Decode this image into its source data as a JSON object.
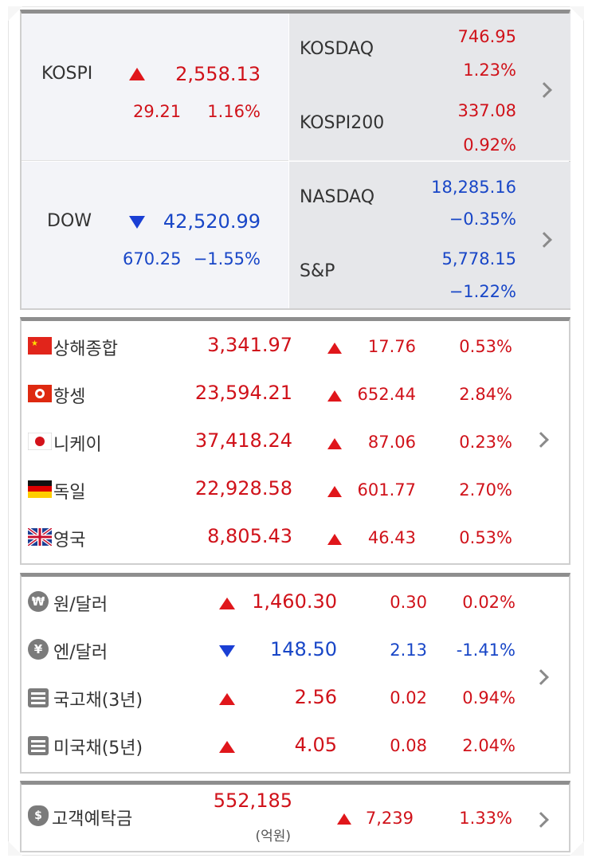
{
  "top": {
    "kospi": {
      "name": "KOSPI",
      "value": "2,558.13",
      "change": "29.21",
      "pct": "1.16%"
    },
    "kosdaq": {
      "name": "KOSDAQ",
      "value": "746.95",
      "pct": "1.23%"
    },
    "kospi200": {
      "name": "KOSPI200",
      "value": "337.08",
      "pct": "0.92%"
    },
    "dow": {
      "name": "DOW",
      "value": "42,520.99",
      "change": "670.25",
      "pct": "−1.55%"
    },
    "nasdaq": {
      "name": "NASDAQ",
      "value": "18,285.16",
      "pct": "−0.35%"
    },
    "sp": {
      "name": "S&P",
      "value": "5,778.15",
      "pct": "−1.22%"
    }
  },
  "world": [
    {
      "name": "상해종합",
      "value": "3,341.97",
      "change": "17.76",
      "pct": "0.53%",
      "flag": "china-flag-icon"
    },
    {
      "name": "항셍",
      "value": "23,594.21",
      "change": "652.44",
      "pct": "2.84%",
      "flag": "hongkong-flag-icon"
    },
    {
      "name": "니케이",
      "value": "37,418.24",
      "change": "87.06",
      "pct": "0.23%",
      "flag": "japan-flag-icon"
    },
    {
      "name": "독일",
      "value": "22,928.58",
      "change": "601.77",
      "pct": "2.70%",
      "flag": "germany-flag-icon"
    },
    {
      "name": "영국",
      "value": "8,805.43",
      "change": "46.43",
      "pct": "0.53%",
      "flag": "uk-flag-icon"
    }
  ],
  "fx": [
    {
      "name": "원/달러",
      "value": "1,460.30",
      "change": "0.30",
      "pct": "0.02%",
      "dir": "up",
      "icon": "won-icon",
      "glyph": "₩"
    },
    {
      "name": "엔/달러",
      "value": "148.50",
      "change": "2.13",
      "pct": "-1.41%",
      "dir": "down",
      "icon": "yen-icon",
      "glyph": "¥"
    },
    {
      "name": "국고채(3년)",
      "value": "2.56",
      "change": "0.02",
      "pct": "0.94%",
      "dir": "up",
      "icon": "list-icon"
    },
    {
      "name": "미국채(5년)",
      "value": "4.05",
      "change": "0.08",
      "pct": "2.04%",
      "dir": "up",
      "icon": "list-icon"
    }
  ],
  "deposit": {
    "name": "고객예탁금",
    "value": "552,185",
    "unit": "(억원)",
    "change": "7,239",
    "pct": "1.33%",
    "icon": "money-bag-icon"
  },
  "colors": {
    "up": "#d0121a",
    "down": "#1846c7",
    "arrow_up": "#e0161b",
    "arrow_down": "#1a3fd4"
  }
}
